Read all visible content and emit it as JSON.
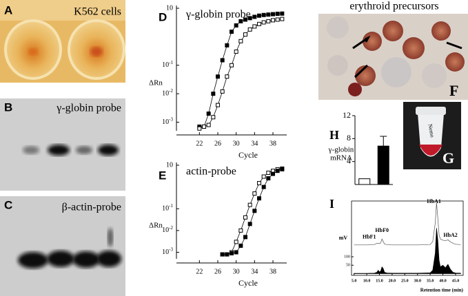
{
  "panels": {
    "A": {
      "label": "A",
      "caption": "K562 cells"
    },
    "B": {
      "label": "B",
      "caption": "γ-globin probe"
    },
    "C": {
      "label": "C",
      "caption": "β-actin-probe"
    },
    "F": {
      "label": "F",
      "caption": "erythroid precursors"
    },
    "G": {
      "label": "G",
      "tube_text": "Nemo"
    }
  },
  "chart_data": [
    {
      "type": "line",
      "panel": "D",
      "title": "γ-globin probe",
      "x_label": "Cycle",
      "y_label": "ΔRn",
      "ylog": true,
      "x": [
        22,
        23,
        24,
        25,
        26,
        27,
        28,
        29,
        30,
        31,
        32,
        33,
        34,
        35,
        36,
        37,
        38,
        39,
        40
      ],
      "series": [
        {
          "marker": "filled",
          "color": "#000000",
          "values": [
            0.0007,
            0.0007,
            0.002,
            0.01,
            0.04,
            0.15,
            0.5,
            1.5,
            2.5,
            3.5,
            4,
            4.5,
            5,
            5.5,
            5.8,
            6,
            6.2,
            6.4,
            6.5
          ]
        },
        {
          "marker": "open",
          "color": "#000000",
          "values": [
            0.0006,
            0.0007,
            0.0008,
            0.0015,
            0.004,
            0.012,
            0.04,
            0.1,
            0.3,
            0.7,
            1.2,
            1.8,
            2.3,
            2.8,
            3.2,
            3.5,
            3.8,
            4,
            4.2
          ]
        }
      ],
      "xlim": [
        17,
        41
      ],
      "xticks": [
        22,
        26,
        30,
        34,
        38
      ],
      "ylim": [
        0.0005,
        10
      ],
      "yticks": [
        10,
        {
          "value": 0.1,
          "label": "10",
          "exponent": "-1"
        },
        {
          "value": 0.01,
          "label": "10",
          "exponent": "-2"
        },
        {
          "value": 0.001,
          "label": "10",
          "exponent": "-3"
        }
      ]
    },
    {
      "type": "line",
      "panel": "E",
      "title": "actin-probe",
      "x_label": "Cycle",
      "y_label": "ΔRn",
      "ylog": true,
      "x": [
        27,
        28,
        29,
        30,
        31,
        32,
        33,
        34,
        35,
        36,
        37,
        38,
        39,
        40
      ],
      "series": [
        {
          "marker": "open",
          "color": "#000000",
          "values": [
            0.0008,
            0.0008,
            0.001,
            0.003,
            0.01,
            0.04,
            0.15,
            0.5,
            1.5,
            3,
            4.5,
            5.5,
            6.5,
            7
          ]
        },
        {
          "marker": "filled",
          "color": "#000000",
          "values": [
            0.0008,
            0.0008,
            0.0009,
            0.001,
            0.002,
            0.005,
            0.02,
            0.08,
            0.3,
            1,
            2.5,
            4,
            5.5,
            6.5
          ]
        }
      ],
      "xlim": [
        17,
        41
      ],
      "xticks": [
        22,
        26,
        30,
        34,
        38
      ],
      "ylim": [
        0.0005,
        10
      ],
      "yticks": [
        10,
        {
          "value": 0.1,
          "label": "10",
          "exponent": "-1"
        },
        {
          "value": 0.01,
          "label": "10",
          "exponent": "-2"
        },
        {
          "value": 0.001,
          "label": "10",
          "exponent": "-3"
        }
      ]
    },
    {
      "type": "bar",
      "panel": "H",
      "y_label": [
        "γ-globin",
        "mRNA"
      ],
      "categories": [
        null,
        null
      ],
      "values": [
        1,
        6.7
      ],
      "errors": [
        null,
        1.7
      ],
      "colors": [
        "#ffffff",
        "#000000"
      ],
      "ylim": [
        0,
        12
      ],
      "yticks": [
        4,
        8,
        12
      ]
    },
    {
      "type": "chromatogram",
      "panel": "I",
      "x_label": "Retention time (min)",
      "y_label": "mV",
      "series": [
        {
          "fill": false,
          "color": "#555555",
          "x": [
            5,
            10,
            13,
            14,
            15,
            15.5,
            16,
            16.5,
            17,
            18,
            20,
            30,
            35,
            36,
            37,
            37.5,
            38,
            38.5,
            39,
            40,
            41,
            42,
            43,
            44,
            45,
            47
          ],
          "values": [
            170,
            170,
            172,
            180,
            178,
            182,
            205,
            190,
            175,
            172,
            170,
            170,
            172,
            190,
            300,
            420,
            330,
            230,
            205,
            198,
            195,
            200,
            188,
            180,
            174,
            172
          ]
        },
        {
          "fill": true,
          "color": "#000000",
          "x": [
            5,
            10,
            13,
            14,
            14.5,
            15,
            15.5,
            16,
            16.5,
            17,
            18,
            20,
            30,
            35,
            36,
            37,
            37.5,
            38,
            38.5,
            39,
            40,
            41,
            42,
            43,
            44,
            45,
            47
          ],
          "values": [
            2,
            2,
            3,
            8,
            20,
            10,
            15,
            40,
            30,
            8,
            4,
            3,
            3,
            5,
            20,
            120,
            270,
            200,
            80,
            40,
            50,
            35,
            55,
            25,
            8,
            4,
            3
          ]
        }
      ],
      "annotations": [
        {
          "text": "HbF1",
          "x": 11,
          "y": 215
        },
        {
          "text": "HbF0",
          "x": 16,
          "y": 255
        },
        {
          "text": "HbA1",
          "x": 36.5,
          "y": 425
        },
        {
          "text": "HbA2",
          "x": 43,
          "y": 225
        }
      ],
      "xlim": [
        4,
        48
      ],
      "xticks": [
        {
          "value": 5,
          "label": "5.0"
        },
        {
          "value": 10,
          "label": "10.0"
        },
        {
          "value": 15,
          "label": "15.0"
        },
        {
          "value": 20,
          "label": "20.0"
        },
        {
          "value": 25,
          "label": "25.0"
        },
        {
          "value": 30,
          "label": "30.0"
        },
        {
          "value": 35,
          "label": "35.0"
        },
        {
          "value": 40,
          "label": "40.0"
        },
        {
          "value": 45,
          "label": "45.0"
        }
      ],
      "ylim": [
        -10,
        430
      ],
      "yticks": [
        50,
        100
      ]
    }
  ]
}
